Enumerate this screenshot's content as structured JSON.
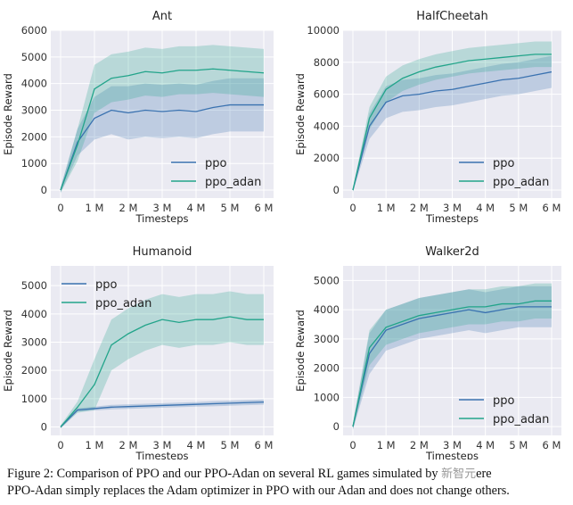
{
  "colors": {
    "ppo": "#3a72b0",
    "ppo_adan": "#22a48a",
    "plot_bg": "#eaeaf2"
  },
  "chart_data": [
    {
      "type": "line",
      "title": "Ant",
      "xlabel": "Timesteps",
      "ylabel": "Episode Reward",
      "xlim": [
        0,
        6
      ],
      "ylim": [
        -300,
        6000
      ],
      "xticks": [
        "0",
        "1 M",
        "2 M",
        "3 M",
        "4 M",
        "5 M",
        "6 M"
      ],
      "yticks": [
        0,
        1000,
        2000,
        3000,
        4000,
        5000,
        6000
      ],
      "legend": "bottom-right",
      "grid": true,
      "x": [
        0,
        0.5,
        1,
        1.5,
        2,
        2.5,
        3,
        3.5,
        4,
        4.5,
        5,
        5.5,
        6
      ],
      "series": [
        {
          "name": "ppo",
          "values": [
            0,
            1800,
            2700,
            3000,
            2900,
            3000,
            2950,
            3000,
            2950,
            3100,
            3200,
            3200,
            3200
          ],
          "std": [
            100,
            500,
            800,
            900,
            1000,
            1000,
            1000,
            1000,
            1000,
            1000,
            1000,
            1000,
            1000
          ]
        },
        {
          "name": "ppo_adan",
          "values": [
            0,
            1700,
            3800,
            4200,
            4300,
            4450,
            4400,
            4500,
            4500,
            4550,
            4500,
            4450,
            4400
          ],
          "std": [
            100,
            600,
            900,
            900,
            900,
            900,
            900,
            900,
            900,
            900,
            900,
            900,
            900
          ]
        }
      ]
    },
    {
      "type": "line",
      "title": "HalfCheetah",
      "xlabel": "Timesteps",
      "ylabel": "Episode Reward",
      "xlim": [
        0,
        6
      ],
      "ylim": [
        -500,
        10000
      ],
      "xticks": [
        "0",
        "1 M",
        "2 M",
        "3 M",
        "4 M",
        "5 M",
        "6 M"
      ],
      "yticks": [
        0,
        2000,
        4000,
        6000,
        8000,
        10000
      ],
      "legend": "bottom-right",
      "grid": true,
      "x": [
        0,
        0.5,
        1,
        1.5,
        2,
        2.5,
        3,
        3.5,
        4,
        4.5,
        5,
        5.5,
        6
      ],
      "series": [
        {
          "name": "ppo",
          "values": [
            0,
            4000,
            5500,
            5900,
            6000,
            6200,
            6300,
            6500,
            6700,
            6900,
            7000,
            7200,
            7400
          ],
          "std": [
            100,
            800,
            1000,
            1000,
            1000,
            1000,
            1000,
            1000,
            1000,
            1000,
            1000,
            1000,
            1000
          ]
        },
        {
          "name": "ppo_adan",
          "values": [
            0,
            4500,
            6300,
            7000,
            7400,
            7700,
            7900,
            8100,
            8200,
            8300,
            8400,
            8500,
            8500
          ],
          "std": [
            100,
            700,
            800,
            800,
            800,
            800,
            800,
            800,
            800,
            800,
            800,
            800,
            800
          ]
        }
      ]
    },
    {
      "type": "line",
      "title": "Humanoid",
      "xlabel": "Timesteps",
      "ylabel": "Episode Reward",
      "xlim": [
        0,
        6
      ],
      "ylim": [
        -300,
        5700
      ],
      "xticks": [
        "0",
        "1 M",
        "2 M",
        "3 M",
        "4 M",
        "5 M",
        "6 M"
      ],
      "yticks": [
        0,
        1000,
        2000,
        3000,
        4000,
        5000
      ],
      "legend": "top-left",
      "grid": true,
      "x": [
        0,
        0.5,
        1,
        1.5,
        2,
        2.5,
        3,
        3.5,
        4,
        4.5,
        5,
        5.5,
        6
      ],
      "series": [
        {
          "name": "ppo",
          "values": [
            0,
            600,
            650,
            700,
            720,
            740,
            760,
            780,
            800,
            820,
            840,
            860,
            880
          ],
          "std": [
            50,
            60,
            70,
            80,
            80,
            80,
            80,
            80,
            80,
            90,
            90,
            90,
            90
          ]
        },
        {
          "name": "ppo_adan",
          "values": [
            0,
            700,
            1500,
            2900,
            3300,
            3600,
            3800,
            3700,
            3800,
            3800,
            3900,
            3800,
            3800
          ],
          "std": [
            50,
            200,
            900,
            900,
            900,
            900,
            900,
            900,
            900,
            900,
            900,
            900,
            900
          ]
        }
      ]
    },
    {
      "type": "line",
      "title": "Walker2d",
      "xlabel": "Timesteps",
      "ylabel": "Episode Reward",
      "xlim": [
        0,
        6
      ],
      "ylim": [
        -300,
        5500
      ],
      "xticks": [
        "0",
        "1 M",
        "2 M",
        "3 M",
        "4 M",
        "5 M",
        "6 M"
      ],
      "yticks": [
        0,
        1000,
        2000,
        3000,
        4000,
        5000
      ],
      "legend": "bottom-right",
      "grid": true,
      "x": [
        0,
        0.5,
        1,
        1.5,
        2,
        2.5,
        3,
        3.5,
        4,
        4.5,
        5,
        5.5,
        6
      ],
      "series": [
        {
          "name": "ppo",
          "values": [
            0,
            2500,
            3300,
            3500,
            3700,
            3800,
            3900,
            4000,
            3900,
            4000,
            4100,
            4100,
            4100
          ],
          "std": [
            100,
            700,
            700,
            700,
            700,
            700,
            700,
            700,
            700,
            700,
            700,
            700,
            700
          ]
        },
        {
          "name": "ppo_adan",
          "values": [
            0,
            2700,
            3400,
            3600,
            3800,
            3900,
            4000,
            4100,
            4100,
            4200,
            4200,
            4300,
            4300
          ],
          "std": [
            100,
            600,
            600,
            600,
            600,
            600,
            600,
            600,
            600,
            600,
            600,
            600,
            600
          ]
        }
      ]
    }
  ],
  "caption": {
    "line1": "Figure 2: Comparison of PPO and our PPO-Adan on several RL games simulated by",
    "line1_end": "ere",
    "watermark": "新智元",
    "line2": "PPO-Adan simply replaces the Adam optimizer in PPO with our Adan and does not change others."
  }
}
